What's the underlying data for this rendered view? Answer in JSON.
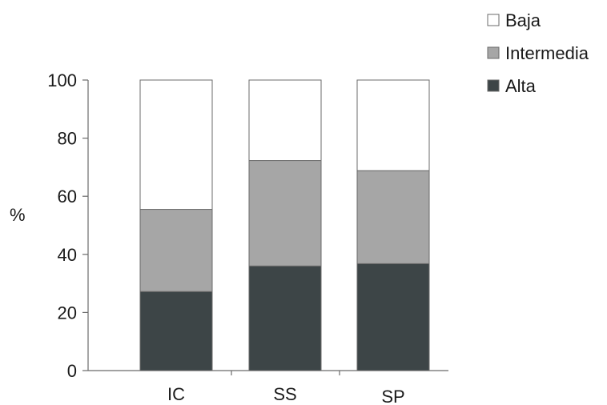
{
  "chart_data": {
    "type": "bar",
    "stacked": true,
    "title": "",
    "xlabel": "",
    "ylabel": "%",
    "ylim": [
      0,
      100
    ],
    "yticks": [
      0,
      20,
      40,
      60,
      80,
      100
    ],
    "grid": false,
    "legend_position": "top-right",
    "categories": [
      "IC",
      "SS",
      "SP"
    ],
    "series": [
      {
        "name": "Alta",
        "values": [
          27.2,
          36.0,
          36.8
        ],
        "color": "#3d4547"
      },
      {
        "name": "Intermedia",
        "values": [
          28.3,
          36.3,
          32.0
        ],
        "color": "#a6a6a6"
      },
      {
        "name": "Baja",
        "values": [
          44.5,
          27.7,
          31.2
        ],
        "color": "#ffffff"
      }
    ],
    "legend_order": [
      "Baja",
      "Intermedia",
      "Alta"
    ]
  }
}
